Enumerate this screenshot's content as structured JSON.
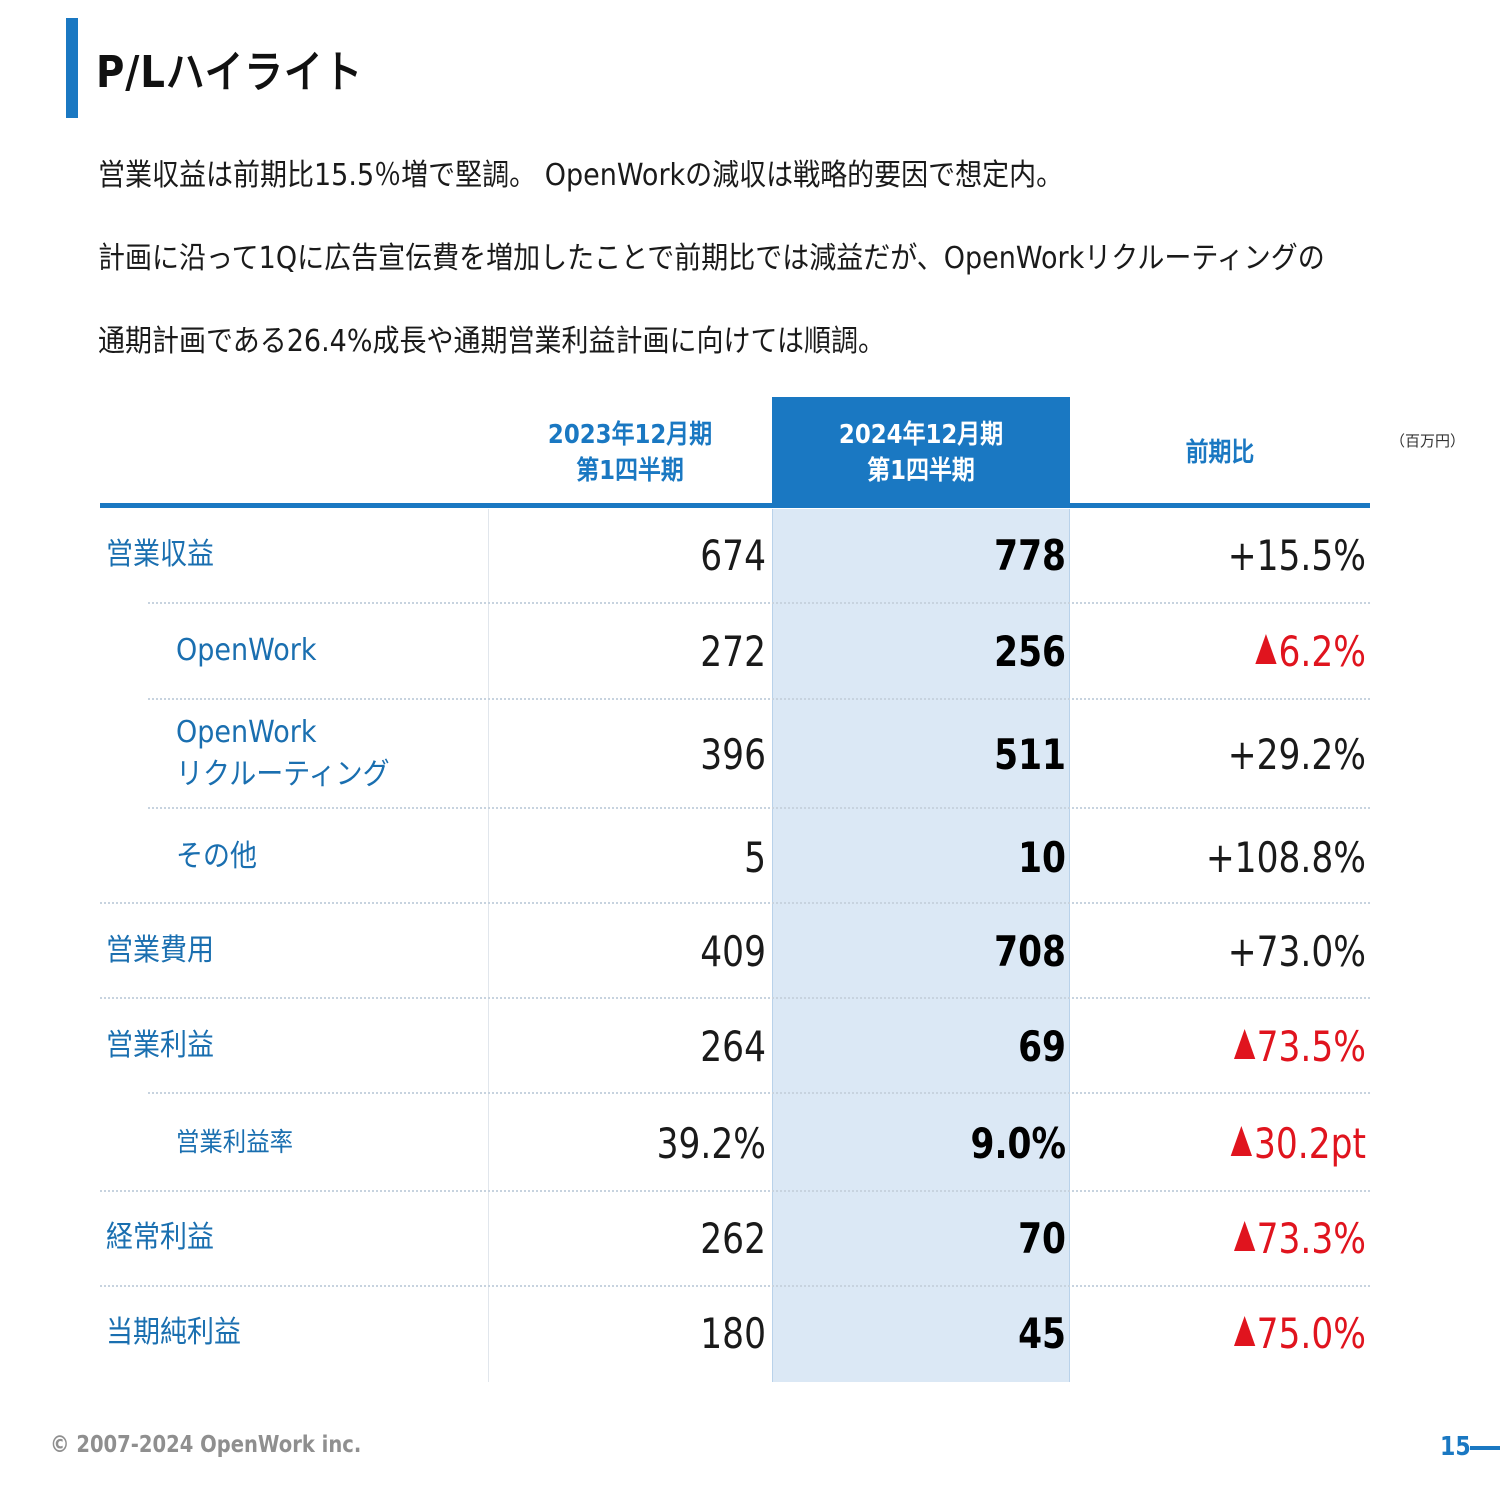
{
  "header": {
    "title": "P/Lハイライト"
  },
  "lead": [
    "営業収益は前期比15.5％増で堅調。 OpenWorkの減収は戦略的要因で想定内。",
    "計画に沿って1Qに広告宣伝費を増加したことで前期比では減益だが、OpenWorkリクルーティングの",
    "通期計画である26.4%成長や通期営業利益計画に向けては順調。"
  ],
  "table": {
    "unit": "（百万円）",
    "headers": {
      "prev": [
        "2023年12月期",
        "第1四半期"
      ],
      "curr": [
        "2024年12月期",
        "第1四半期"
      ],
      "change": "前期比"
    },
    "rows": [
      {
        "label": [
          "営業収益"
        ],
        "prev": "674",
        "curr": "778",
        "change": "+15.5%",
        "negative": false
      },
      {
        "label": [
          "OpenWork"
        ],
        "prev": "272",
        "curr": "256",
        "change": "6.2%",
        "negative": true
      },
      {
        "label": [
          "OpenWork",
          "リクルーティング"
        ],
        "prev": "396",
        "curr": "511",
        "change": "+29.2%",
        "negative": false
      },
      {
        "label": [
          "その他"
        ],
        "prev": "5",
        "curr": "10",
        "change": "+108.8%",
        "negative": false
      },
      {
        "label": [
          "営業費用"
        ],
        "prev": "409",
        "curr": "708",
        "change": "+73.0%",
        "negative": false
      },
      {
        "label": [
          "営業利益"
        ],
        "prev": "264",
        "curr": "69",
        "change": "73.5%",
        "negative": true
      },
      {
        "label": [
          "営業利益率"
        ],
        "prev": "39.2%",
        "curr": "9.0%",
        "change": "30.2pt",
        "negative": true
      },
      {
        "label": [
          "経常利益"
        ],
        "prev": "262",
        "curr": "70",
        "change": "73.3%",
        "negative": true
      },
      {
        "label": [
          "当期純利益"
        ],
        "prev": "180",
        "curr": "45",
        "change": "75.0%",
        "negative": true
      }
    ]
  },
  "colors": {
    "accent": "#1a78c2",
    "label": "#1a6fb0",
    "negative": "#e0141e",
    "highlight_column": "#dbe8f5"
  },
  "icons": {
    "negative_marker": "red-triangle-up-icon"
  },
  "footer": {
    "copyright": "© 2007-2024 OpenWork inc.",
    "page_number": "15"
  }
}
